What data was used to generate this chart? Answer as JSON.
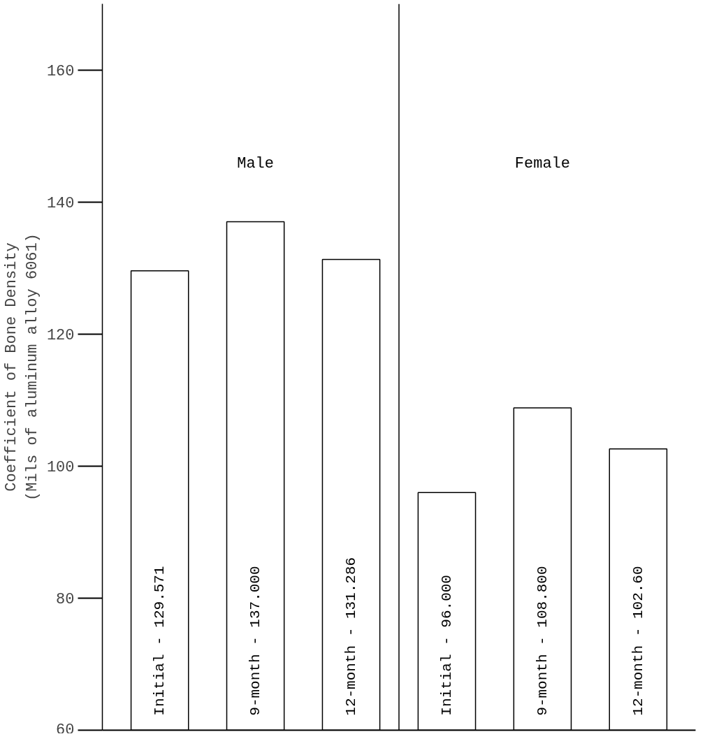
{
  "chart_data": {
    "type": "bar",
    "categories": [
      "Initial -",
      "9-month -",
      "12-month -",
      "Initial -",
      "9-month -",
      "12-month -"
    ],
    "values": [
      129.571,
      137.0,
      131.286,
      96.0,
      108.8,
      102.6
    ],
    "value_labels": [
      "129.571",
      "137.000",
      "131.286",
      "96.000",
      "108.800",
      "102.60"
    ],
    "color": "#ffffff",
    "ylabel": "Coefficient of Bone Density\n(Mils of aluminum alloy 6061)",
    "ylim": [
      60,
      170
    ],
    "yticks": [
      60,
      80,
      100,
      120,
      140,
      160
    ],
    "grid": false,
    "annotations": [
      "Male",
      "Female"
    ]
  }
}
